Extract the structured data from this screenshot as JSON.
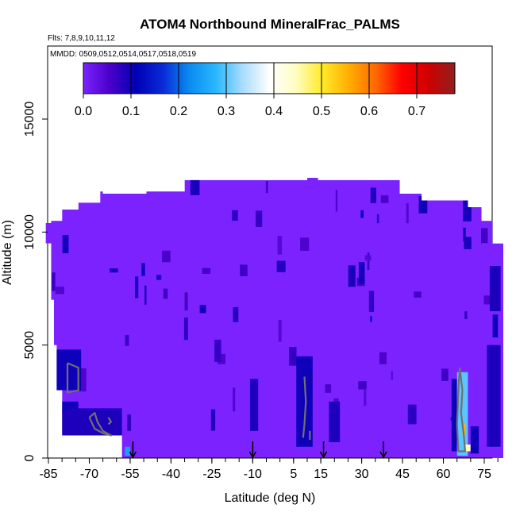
{
  "chart_data": {
    "type": "heatmap",
    "title": "ATOM4 Northbound MineralFrac_PALMS",
    "subtitle_flights": "Flts: 7,8,9,10,11,12",
    "subtitle_dates": "MMDD: 0509,0512,0514,0517,0518,0519",
    "xlabel": "Latitude (deg N)",
    "ylabel": "Altitude (m)",
    "xlim": [
      -85,
      82
    ],
    "ylim": [
      0,
      17500
    ],
    "x_ticks": [
      "-85",
      "-70",
      "-55",
      "-40",
      "-25",
      "-10",
      "5",
      "15",
      "30",
      "45",
      "60",
      "75"
    ],
    "x_tick_values": [
      -85,
      -70,
      -55,
      -40,
      -25,
      -10,
      5,
      15,
      30,
      45,
      60,
      75
    ],
    "y_ticks": [
      "0",
      "5000",
      "10000",
      "15000"
    ],
    "y_tick_values": [
      0,
      5000,
      10000,
      15000
    ],
    "colorbar_ticks": [
      "0.0",
      "0.1",
      "0.2",
      "0.3",
      "0.4",
      "0.5",
      "0.6",
      "0.7"
    ],
    "colorbar_tick_values": [
      0.0,
      0.1,
      0.2,
      0.3,
      0.4,
      0.5,
      0.6,
      0.7
    ],
    "colorbar_range": [
      0.0,
      0.78
    ],
    "colorbar_stops": [
      "#7b22ff",
      "#4a00c8",
      "#0000b5",
      "#0a2ad8",
      "#0a8cf0",
      "#2ab7ff",
      "#a9dcff",
      "#ffffff",
      "#fffdc2",
      "#ffeb2a",
      "#ffae00",
      "#ff6a00",
      "#ff0000",
      "#d00000",
      "#8f1f1f"
    ],
    "background_value_color": "#7b22ff",
    "data_envelope": [
      [
        -86,
        10400
      ],
      [
        -84,
        10400
      ],
      [
        -84,
        10500
      ],
      [
        -80,
        10500
      ],
      [
        -80,
        11000
      ],
      [
        -74,
        11000
      ],
      [
        -74,
        11300
      ],
      [
        -66,
        11300
      ],
      [
        -66,
        11800
      ],
      [
        -65,
        11800
      ],
      [
        -65,
        11700
      ],
      [
        -49,
        11700
      ],
      [
        -49,
        11800
      ],
      [
        -35,
        11800
      ],
      [
        -35,
        12300
      ],
      [
        10,
        12300
      ],
      [
        10,
        12400
      ],
      [
        14,
        12400
      ],
      [
        14,
        12300
      ],
      [
        44,
        12300
      ],
      [
        44,
        11700
      ],
      [
        52,
        11700
      ],
      [
        52,
        11400
      ],
      [
        69,
        11400
      ],
      [
        69,
        11100
      ],
      [
        74,
        11100
      ],
      [
        74,
        10500
      ],
      [
        78,
        10500
      ],
      [
        78,
        9500
      ],
      [
        82,
        9500
      ],
      [
        82,
        0
      ],
      [
        -58,
        0
      ],
      [
        -58,
        1000
      ],
      [
        -80,
        1000
      ],
      [
        -80,
        3000
      ],
      [
        -82,
        3000
      ],
      [
        -82,
        5000
      ],
      [
        -83,
        5000
      ],
      [
        -83,
        7000
      ],
      [
        -84,
        7000
      ],
      [
        -84,
        9500
      ],
      [
        -86,
        9500
      ]
    ],
    "value_cells": [
      {
        "x0": -82,
        "x1": -73,
        "y0": 3000,
        "y1": 4800,
        "value": 0.1
      },
      {
        "x0": -80,
        "x1": -74,
        "y0": 2000,
        "y1": 2500,
        "value": 0.1
      },
      {
        "x0": -80,
        "x1": -58,
        "y0": 1000,
        "y1": 2200,
        "value": 0.09
      },
      {
        "x0": -57,
        "x1": -55,
        "y0": 100,
        "y1": 500,
        "value": 0.25
      },
      {
        "x0": -11,
        "x1": -8,
        "y0": 1200,
        "y1": 3500,
        "value": 0.09
      },
      {
        "x0": 6,
        "x1": 12,
        "y0": 500,
        "y1": 4500,
        "value": 0.1
      },
      {
        "x0": 18,
        "x1": 22,
        "y0": 700,
        "y1": 2500,
        "value": 0.09
      },
      {
        "x0": 76,
        "x1": 81,
        "y0": 500,
        "y1": 5000,
        "value": 0.09
      },
      {
        "x0": 77,
        "x1": 81,
        "y0": 6500,
        "y1": 8500,
        "value": 0.09
      },
      {
        "x0": 63,
        "x1": 65,
        "y0": 300,
        "y1": 3500,
        "value": 0.1
      },
      {
        "x0": 65,
        "x1": 69,
        "y0": 100,
        "y1": 3800,
        "value": 0.3
      },
      {
        "x0": 67,
        "x1": 68,
        "y0": 1000,
        "y1": 1500,
        "value": 0.55
      },
      {
        "x0": 68,
        "x1": 70,
        "y0": 300,
        "y1": 600,
        "value": 0.45
      },
      {
        "x0": 70,
        "x1": 73,
        "y0": 200,
        "y1": 1400,
        "value": 0.1
      }
    ],
    "contour_color": "#707070",
    "contours": [
      [
        [
          -78,
          4200
        ],
        [
          -74,
          4000
        ],
        [
          -74,
          3000
        ],
        [
          -78,
          2900
        ],
        [
          -78,
          4200
        ]
      ],
      [
        [
          -70,
          1800
        ],
        [
          -68,
          1300
        ],
        [
          -65,
          1100
        ],
        [
          -62,
          1000
        ],
        [
          -65,
          1200
        ],
        [
          -67,
          1600
        ],
        [
          -68,
          2000
        ],
        [
          -70,
          1800
        ]
      ],
      [
        [
          -63,
          1800
        ],
        [
          -62,
          1600
        ],
        [
          -63,
          1500
        ]
      ],
      [
        [
          9,
          3600
        ],
        [
          9.5,
          2500
        ],
        [
          9,
          1500
        ],
        [
          8.5,
          900
        ]
      ],
      [
        [
          11,
          1200
        ],
        [
          11,
          800
        ]
      ],
      [
        [
          66,
          4000
        ],
        [
          67,
          3000
        ],
        [
          66.5,
          2000
        ],
        [
          67.5,
          1000
        ],
        [
          68,
          300
        ],
        [
          65.5,
          300
        ],
        [
          65,
          1500
        ],
        [
          65.5,
          3000
        ],
        [
          66,
          4000
        ]
      ]
    ],
    "flight_markers_lat": [
      -54,
      -10,
      16,
      38
    ],
    "grid": false,
    "legend": "colorbar-top"
  }
}
